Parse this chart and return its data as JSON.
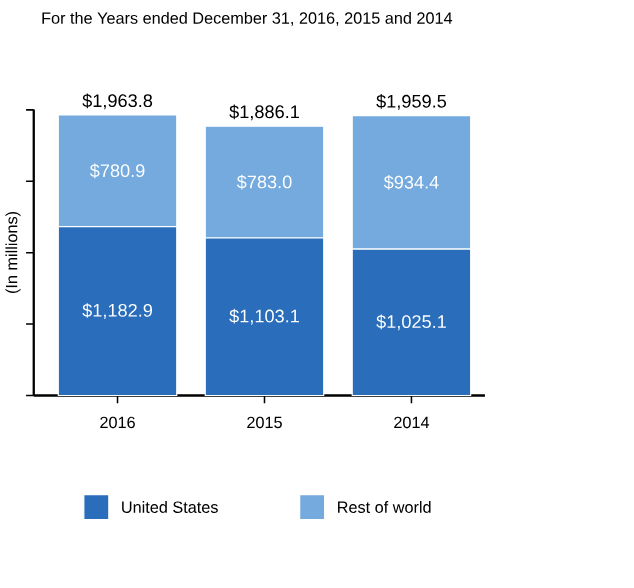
{
  "chart_data": {
    "type": "bar",
    "title": "For the Years ended December 31, 2016, 2015 and 2014",
    "ylabel": "(In millions)",
    "categories": [
      "2016",
      "2015",
      "2014"
    ],
    "stacked": true,
    "tick_labels": "x",
    "legend": "bottom",
    "series": [
      {
        "name": "United States",
        "color": "#2a6ebb",
        "values": [
          1182.9,
          1103.1,
          1025.1
        ],
        "value_labels": [
          "$1,182.9",
          "$1,103.1",
          "$1,025.1"
        ]
      },
      {
        "name": "Rest of world",
        "color": "#74aade",
        "values": [
          780.9,
          783.0,
          934.4
        ],
        "value_labels": [
          "$780.9",
          "$783.0",
          "$934.4"
        ]
      }
    ],
    "totals": [
      "$1,963.8",
      "$1,886.1",
      "$1,959.5"
    ]
  }
}
